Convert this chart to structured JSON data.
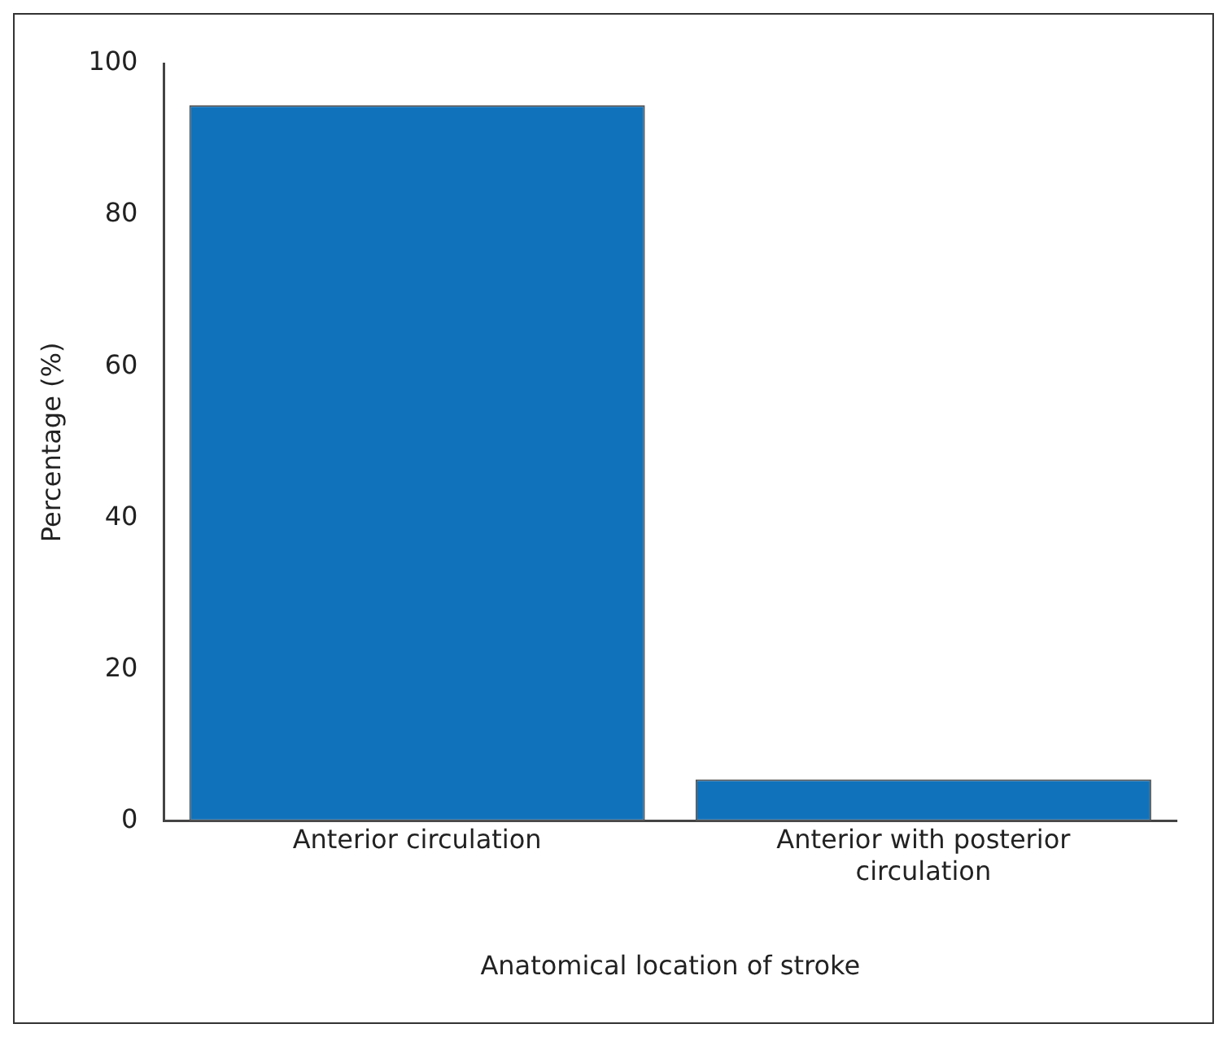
{
  "chart_data": {
    "type": "bar",
    "xlabel": "Anatomical location of stroke",
    "ylabel": "Percentage (%)",
    "categories": [
      "Anterior circulation",
      "Anterior with posterior circulation"
    ],
    "values": [
      94.5,
      5.5
    ],
    "color": "#1072bb",
    "ylim": [
      0,
      100
    ],
    "yticks": [
      0,
      20,
      40,
      60,
      80,
      100
    ],
    "grid": false,
    "legend": false
  }
}
